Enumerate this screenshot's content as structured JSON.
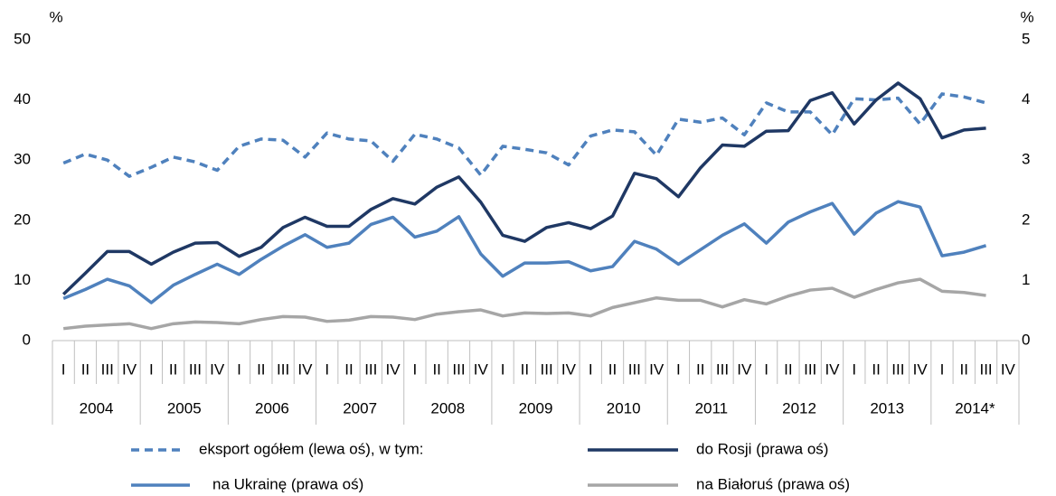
{
  "chart_data": {
    "type": "line",
    "y_label": "%",
    "y2_label": "%",
    "categories": [
      "I",
      "II",
      "III",
      "IV",
      "I",
      "II",
      "III",
      "IV",
      "I",
      "II",
      "III",
      "IV",
      "I",
      "II",
      "III",
      "IV",
      "I",
      "II",
      "III",
      "IV",
      "I",
      "II",
      "III",
      "IV",
      "I",
      "II",
      "III",
      "IV",
      "I",
      "II",
      "III",
      "IV",
      "I",
      "II",
      "III",
      "IV",
      "I",
      "II",
      "III",
      "IV",
      "I",
      "II",
      "III",
      "IV"
    ],
    "groups": [
      "2004",
      "2005",
      "2006",
      "2007",
      "2008",
      "2009",
      "2010",
      "2011",
      "2012",
      "2013",
      "2014*"
    ],
    "ylim": [
      0,
      50
    ],
    "yticks": [
      0,
      10,
      20,
      30,
      40,
      50
    ],
    "y2lim": [
      0,
      5
    ],
    "y2ticks": [
      0,
      1,
      2,
      3,
      4,
      5
    ],
    "grid": false,
    "series": [
      {
        "name": "eksport ogółem (lewa oś), w tym:",
        "color": "#4f81bd",
        "dashed": true,
        "values": [
          29.5,
          31,
          30,
          27.3,
          28.8,
          30.5,
          29.7,
          28.3,
          32.3,
          33.5,
          33.3,
          30.5,
          34.5,
          33.5,
          33.2,
          29.8,
          34.3,
          33.5,
          32,
          27.5,
          32.3,
          31.8,
          31.2,
          29.2,
          34,
          35,
          34.7,
          30.8,
          36.8,
          36.3,
          37,
          34.2,
          39.5,
          38,
          38,
          34.2,
          40.2,
          40,
          40.3,
          36,
          41,
          40.5,
          39.5,
          null
        ]
      },
      {
        "name": "do Rosji (prawa oś)",
        "color": "#1f3864",
        "axis": "y2",
        "values": [
          0.77,
          1.12,
          1.48,
          1.48,
          1.27,
          1.47,
          1.62,
          1.63,
          1.4,
          1.55,
          1.88,
          2.05,
          1.9,
          1.9,
          2.18,
          2.36,
          2.27,
          2.55,
          2.72,
          2.3,
          1.75,
          1.65,
          1.88,
          1.96,
          1.86,
          2.07,
          2.78,
          2.69,
          2.39,
          2.87,
          3.25,
          3.23,
          3.48,
          3.49,
          3.99,
          4.12,
          3.6,
          4,
          4.28,
          4.02,
          3.37,
          3.5,
          3.53,
          null
        ]
      },
      {
        "name": "na Ukrainę (prawa oś)",
        "color": "#4f81bd",
        "axis": "y2",
        "values": [
          0.7,
          0.85,
          1.02,
          0.91,
          0.63,
          0.92,
          1.1,
          1.27,
          1.1,
          1.35,
          1.57,
          1.76,
          1.55,
          1.62,
          1.93,
          2.05,
          1.72,
          1.82,
          2.06,
          1.44,
          1.07,
          1.29,
          1.29,
          1.31,
          1.16,
          1.23,
          1.65,
          1.52,
          1.27,
          1.51,
          1.75,
          1.94,
          1.62,
          1.97,
          2.14,
          2.28,
          1.77,
          2.12,
          2.31,
          2.22,
          1.41,
          1.47,
          1.58,
          null
        ]
      },
      {
        "name": "na Białoruś (prawa oś)",
        "color": "#a6a6a6",
        "axis": "y2",
        "values": [
          0.2,
          0.24,
          0.26,
          0.28,
          0.2,
          0.28,
          0.31,
          0.3,
          0.28,
          0.35,
          0.4,
          0.39,
          0.32,
          0.34,
          0.4,
          0.39,
          0.35,
          0.44,
          0.48,
          0.51,
          0.41,
          0.46,
          0.45,
          0.46,
          0.41,
          0.55,
          0.63,
          0.71,
          0.67,
          0.67,
          0.56,
          0.68,
          0.61,
          0.74,
          0.84,
          0.87,
          0.72,
          0.85,
          0.96,
          1.02,
          0.82,
          0.8,
          0.75,
          null
        ]
      }
    ]
  }
}
